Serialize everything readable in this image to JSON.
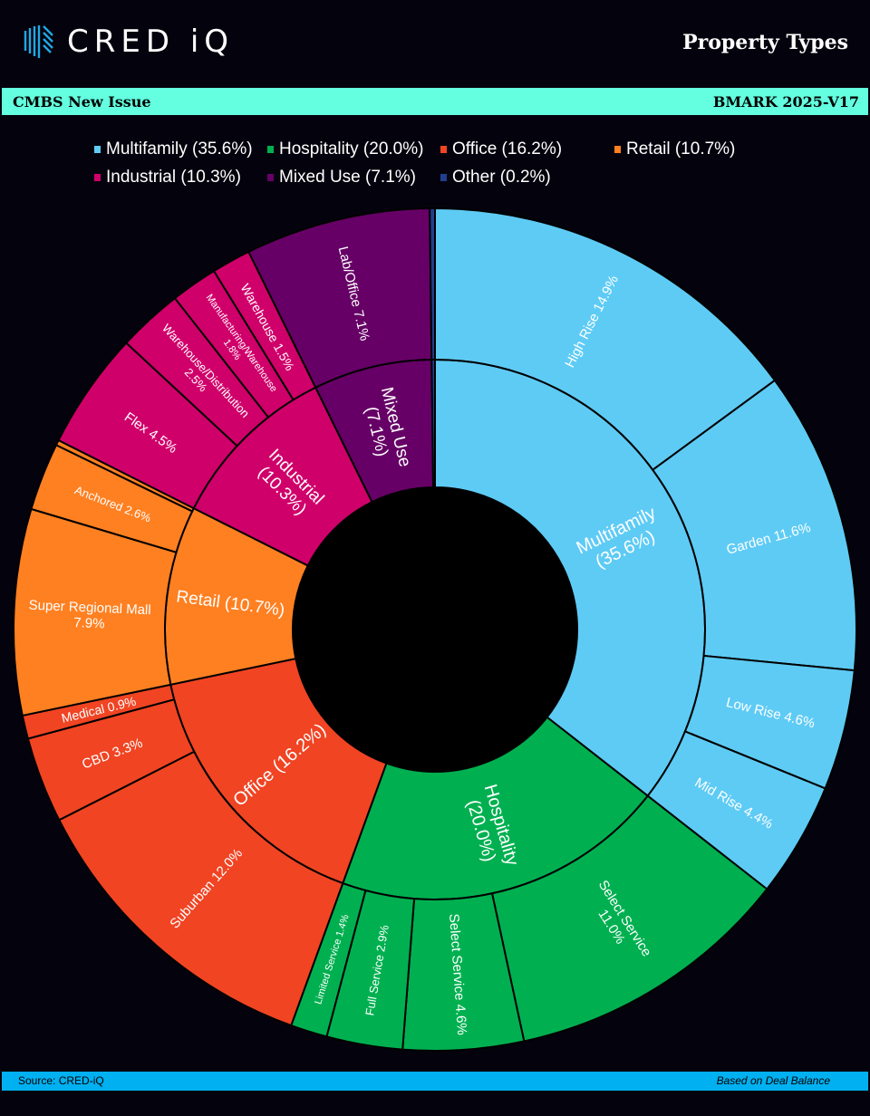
{
  "header": {
    "brand": "CRED iQ",
    "title": "Property Types"
  },
  "band": {
    "left": "CMBS New Issue",
    "right": "BMARK 2025-V17"
  },
  "footer": {
    "source": "Source:  CRED-iQ",
    "note": "Based on Deal Balance"
  },
  "chart_data": {
    "type": "sunburst",
    "title": "Property Types",
    "legend_position": "top",
    "legend": [
      {
        "label": "Multifamily (35.6%)",
        "color": "#5ecbf5"
      },
      {
        "label": "Hospitality (20.0%)",
        "color": "#00b050"
      },
      {
        "label": "Office (16.2%)",
        "color": "#f04423"
      },
      {
        "label": "Retail (10.7%)",
        "color": "#ff8021"
      },
      {
        "label": "Industrial (10.3%)",
        "color": "#d0006a"
      },
      {
        "label": "Mixed Use (7.1%)",
        "color": "#660066"
      },
      {
        "label": "Other (0.2%)",
        "color": "#203f8f"
      }
    ],
    "categories": [
      {
        "name": "Multifamily",
        "value": 35.6,
        "label": [
          "Multifamily",
          "(35.6%)"
        ],
        "color": "#5ecbf5",
        "children": [
          {
            "label": [
              "High Rise 14.9%"
            ],
            "value": 14.9
          },
          {
            "label": [
              "Garden 11.6%"
            ],
            "value": 11.6
          },
          {
            "label": [
              "Low Rise 4.6%"
            ],
            "value": 4.6
          },
          {
            "label": [
              "Mid Rise 4.4%"
            ],
            "value": 4.4
          }
        ]
      },
      {
        "name": "Hospitality",
        "value": 20.0,
        "label": [
          "Hospitality",
          "(20.0%)"
        ],
        "color": "#00b050",
        "children": [
          {
            "label": [
              "Select Service",
              "11.0%"
            ],
            "value": 11.0
          },
          {
            "label": [
              "Select Service 4.6%"
            ],
            "value": 4.6
          },
          {
            "label": [
              "Full Service 2.9%"
            ],
            "value": 2.9
          },
          {
            "label": [
              "Limited Service 1.4%"
            ],
            "value": 1.4
          }
        ]
      },
      {
        "name": "Office",
        "value": 16.2,
        "label": [
          "Office (16.2%)"
        ],
        "color": "#f04423",
        "children": [
          {
            "label": [
              "Suburban 12.0%"
            ],
            "value": 12.0
          },
          {
            "label": [
              "CBD 3.3%"
            ],
            "value": 3.3
          },
          {
            "label": [
              "Medical 0.9%"
            ],
            "value": 0.9
          }
        ]
      },
      {
        "name": "Retail",
        "value": 10.7,
        "label": [
          "Retail (10.7%)"
        ],
        "color": "#ff8021",
        "children": [
          {
            "label": [
              "Super Regional Mall",
              "7.9%"
            ],
            "value": 7.9
          },
          {
            "label": [
              "Anchored 2.6%"
            ],
            "value": 2.6
          },
          {
            "label": [],
            "value": 0.2
          }
        ]
      },
      {
        "name": "Industrial",
        "value": 10.3,
        "label": [
          "Industrial",
          "(10.3%)"
        ],
        "color": "#d0006a",
        "children": [
          {
            "label": [
              "Flex 4.5%"
            ],
            "value": 4.5
          },
          {
            "label": [
              "Warehouse/Distribution",
              "2.5%"
            ],
            "value": 2.5
          },
          {
            "label": [
              "Manufacturing/Warehouse",
              "1.8%"
            ],
            "value": 1.8
          },
          {
            "label": [
              "Warehouse 1.5%"
            ],
            "value": 1.5
          }
        ]
      },
      {
        "name": "Mixed Use",
        "value": 7.1,
        "label": [
          "Mixed Use",
          "(7.1%)"
        ],
        "color": "#660066",
        "children": [
          {
            "label": [
              "Lab/Office 7.1%"
            ],
            "value": 7.1
          }
        ]
      },
      {
        "name": "Other",
        "value": 0.2,
        "label": [],
        "color": "#203f8f",
        "children": [
          {
            "label": [],
            "value": 0.2
          }
        ]
      }
    ]
  }
}
